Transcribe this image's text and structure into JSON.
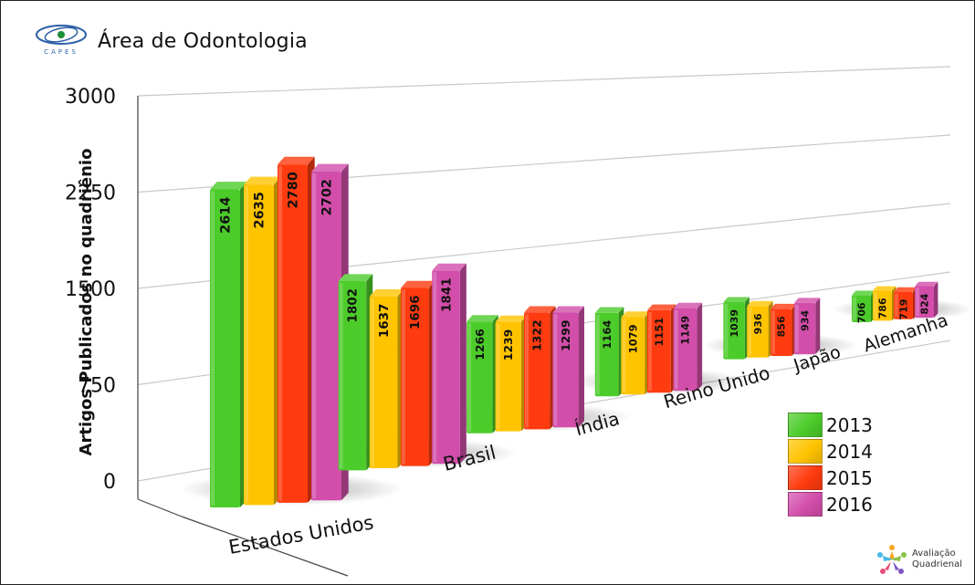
{
  "header": {
    "title": "Área de Odontologia",
    "logo_text": "CAPES"
  },
  "footer": {
    "line1": "Avaliação",
    "line2": "Quadrienal"
  },
  "colors": {
    "2013": "#4ccc2a",
    "2014": "#ffc400",
    "2015": "#ff3b0f",
    "2016": "#d24eaa"
  },
  "chart_data": {
    "type": "bar",
    "style": "3d-perspective",
    "title": "Área de Odontologia",
    "ylabel": "Artigos Publicados no quadriênio",
    "xlabel": "",
    "ylim": [
      0,
      3000
    ],
    "yticks": [
      "0",
      "750",
      "1500",
      "2250",
      "3000"
    ],
    "grid": true,
    "legend_position": "bottom-right",
    "categories": [
      "Estados Unidos",
      "Brasil",
      "Índia",
      "Reino Unido",
      "Japão",
      "Alemanha"
    ],
    "series": [
      {
        "name": "2013",
        "values": [
          2614,
          1802,
          1266,
          1164,
          1039,
          706
        ]
      },
      {
        "name": "2014",
        "values": [
          2635,
          1637,
          1239,
          1079,
          936,
          786
        ]
      },
      {
        "name": "2015",
        "values": [
          2780,
          1696,
          1322,
          1151,
          856,
          719
        ]
      },
      {
        "name": "2016",
        "values": [
          2702,
          1841,
          1299,
          1149,
          934,
          824
        ]
      }
    ]
  }
}
